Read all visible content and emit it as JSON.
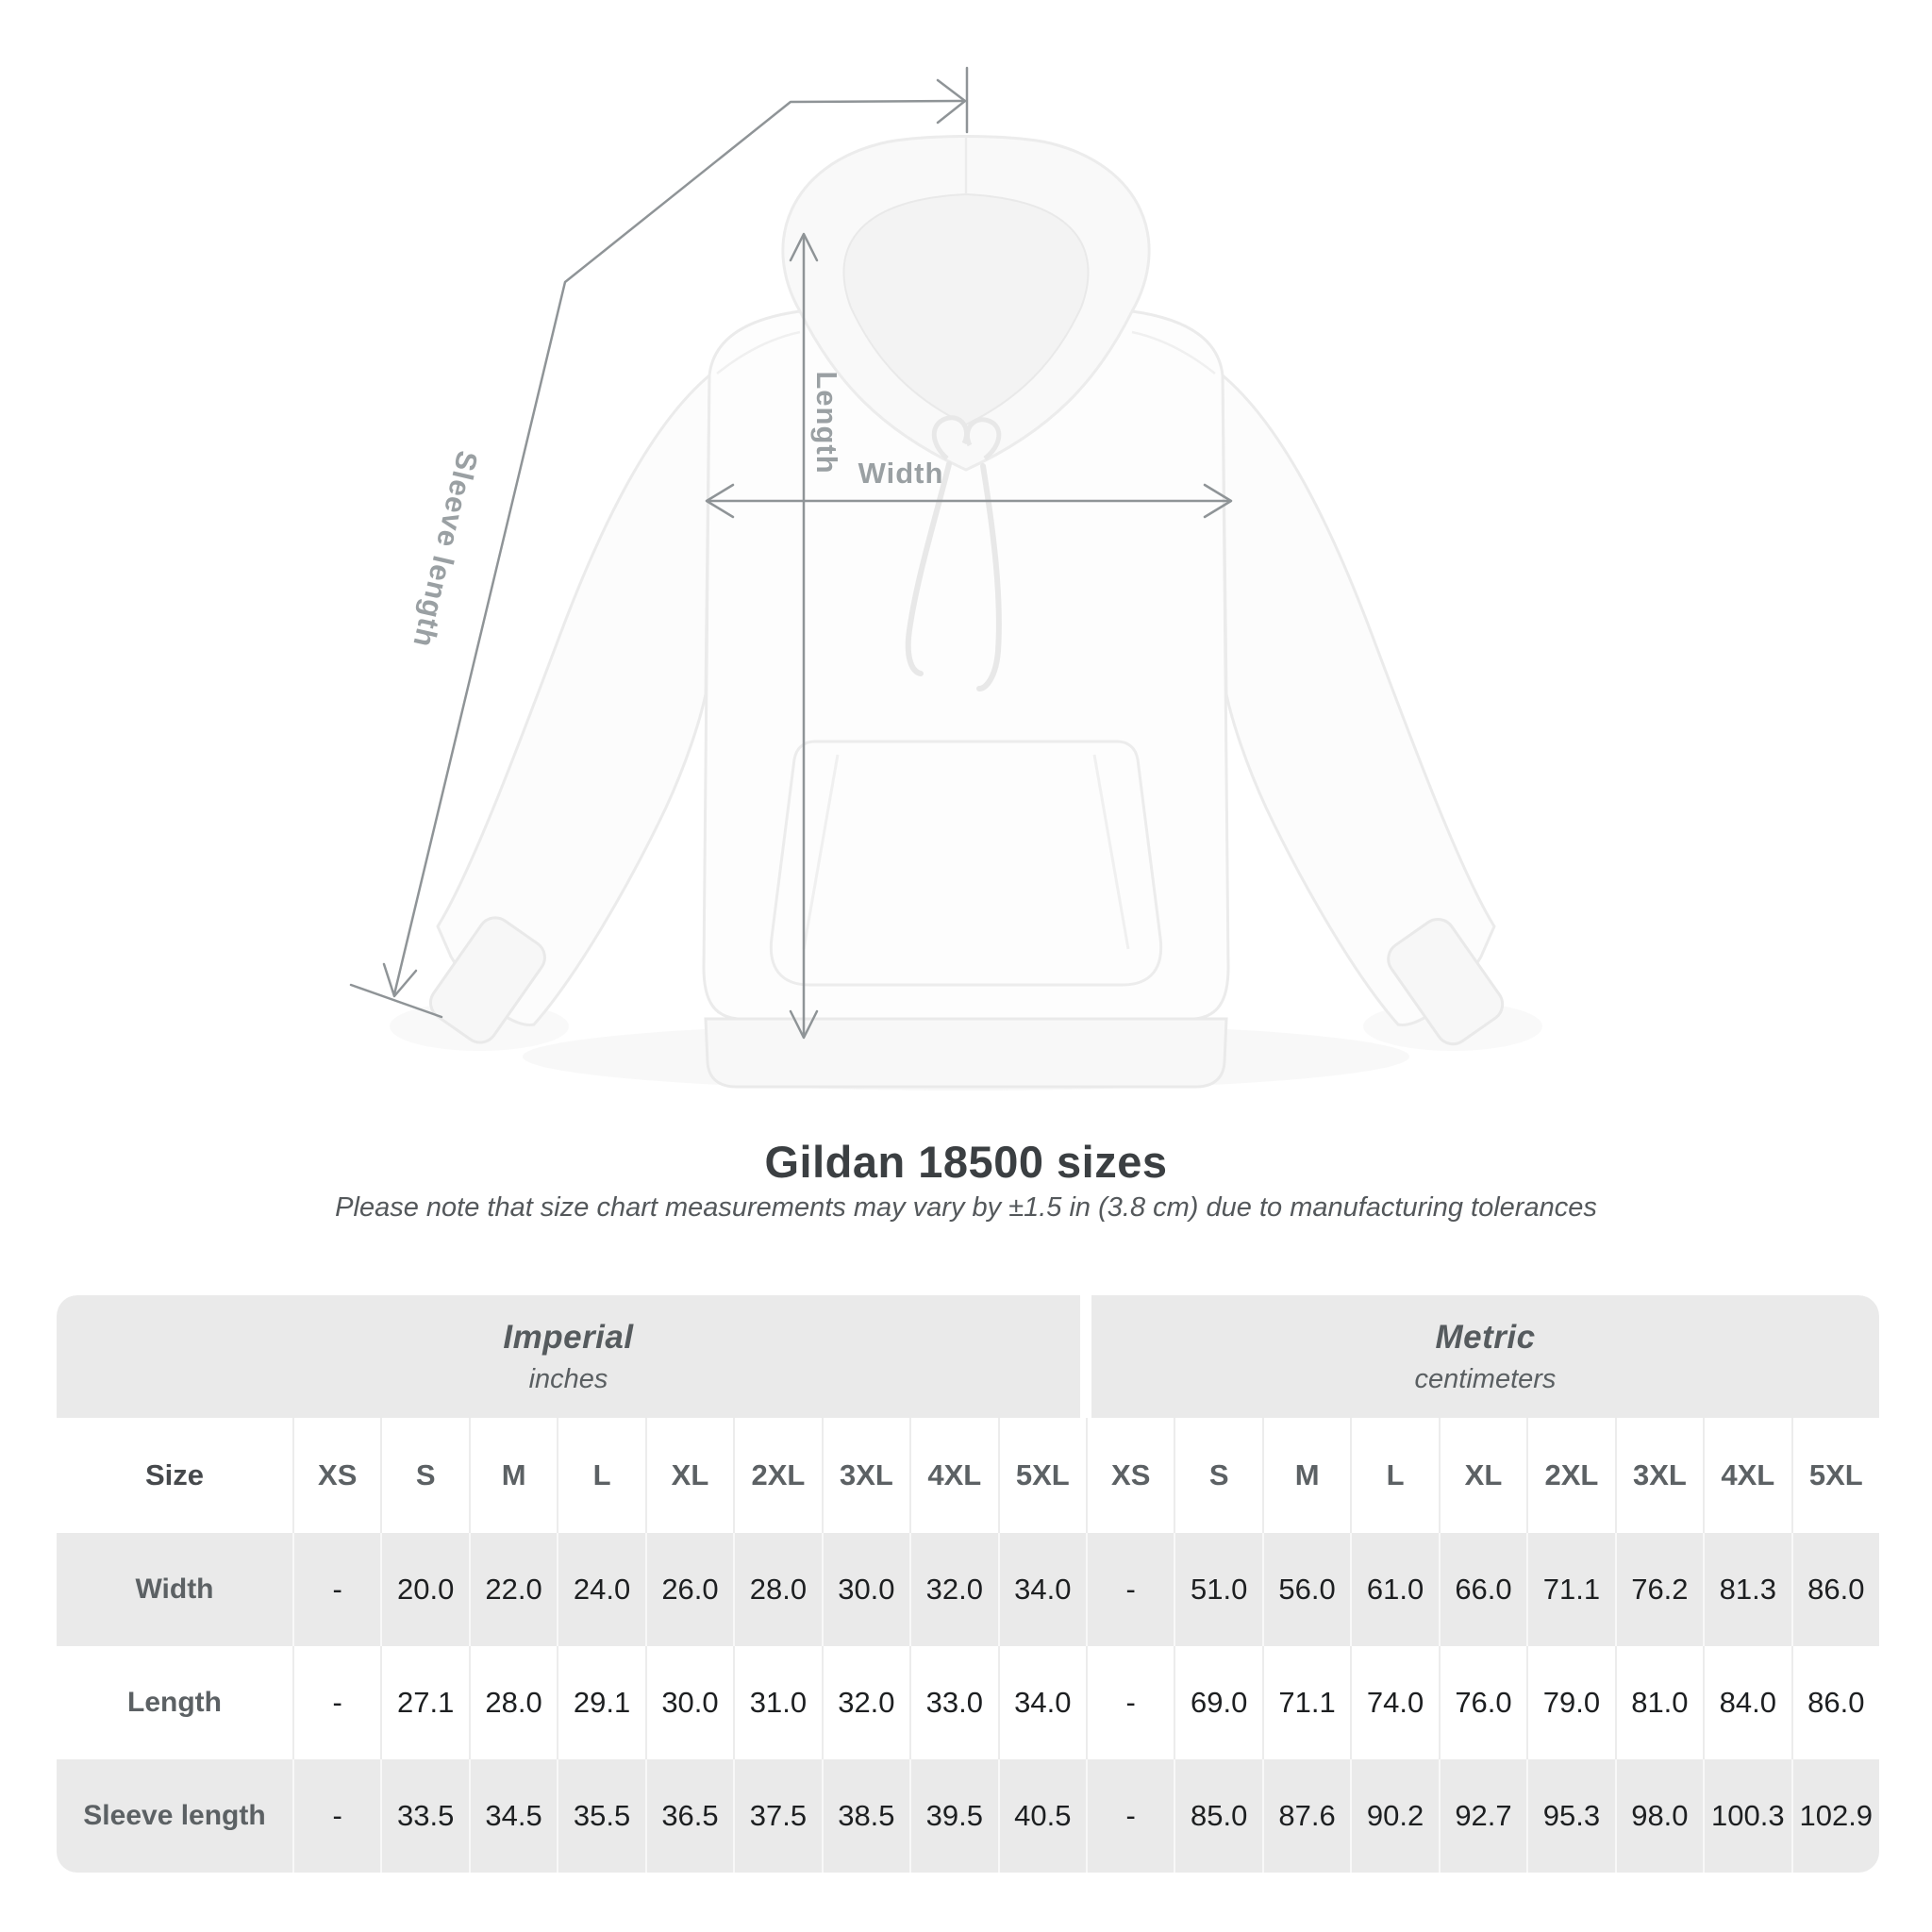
{
  "page": {
    "background": "#ffffff"
  },
  "diagram": {
    "measure_labels": {
      "length": "Length",
      "width": "Width",
      "sleeve_length": "Sleeve length"
    },
    "line_color": "#8f9497",
    "label_color": "#9aa0a3"
  },
  "heading": {
    "title": "Gildan 18500 sizes",
    "subtitle": "Please note that size chart measurements may vary by ±1.5 in (3.8 cm) due to manufacturing tolerances"
  },
  "size_table": {
    "groups": [
      {
        "label": "Imperial",
        "unit": "inches"
      },
      {
        "label": "Metric",
        "unit": "centimeters"
      }
    ],
    "corner_header": "Size",
    "sizes": [
      "XS",
      "S",
      "M",
      "L",
      "XL",
      "2XL",
      "3XL",
      "4XL",
      "5XL"
    ],
    "rows": [
      {
        "label": "Width",
        "imperial": [
          "-",
          "20.0",
          "22.0",
          "24.0",
          "26.0",
          "28.0",
          "30.0",
          "32.0",
          "34.0"
        ],
        "metric": [
          "-",
          "51.0",
          "56.0",
          "61.0",
          "66.0",
          "71.1",
          "76.2",
          "81.3",
          "86.0"
        ]
      },
      {
        "label": "Length",
        "imperial": [
          "-",
          "27.1",
          "28.0",
          "29.1",
          "30.0",
          "31.0",
          "32.0",
          "33.0",
          "34.0"
        ],
        "metric": [
          "-",
          "69.0",
          "71.1",
          "74.0",
          "76.0",
          "79.0",
          "81.0",
          "84.0",
          "86.0"
        ]
      },
      {
        "label": "Sleeve length",
        "imperial": [
          "-",
          "33.5",
          "34.5",
          "35.5",
          "36.5",
          "37.5",
          "38.5",
          "39.5",
          "40.5"
        ],
        "metric": [
          "-",
          "85.0",
          "87.6",
          "90.2",
          "92.7",
          "95.3",
          "98.0",
          "100.3",
          "102.9"
        ]
      }
    ],
    "band_color": "#eaeaea"
  }
}
